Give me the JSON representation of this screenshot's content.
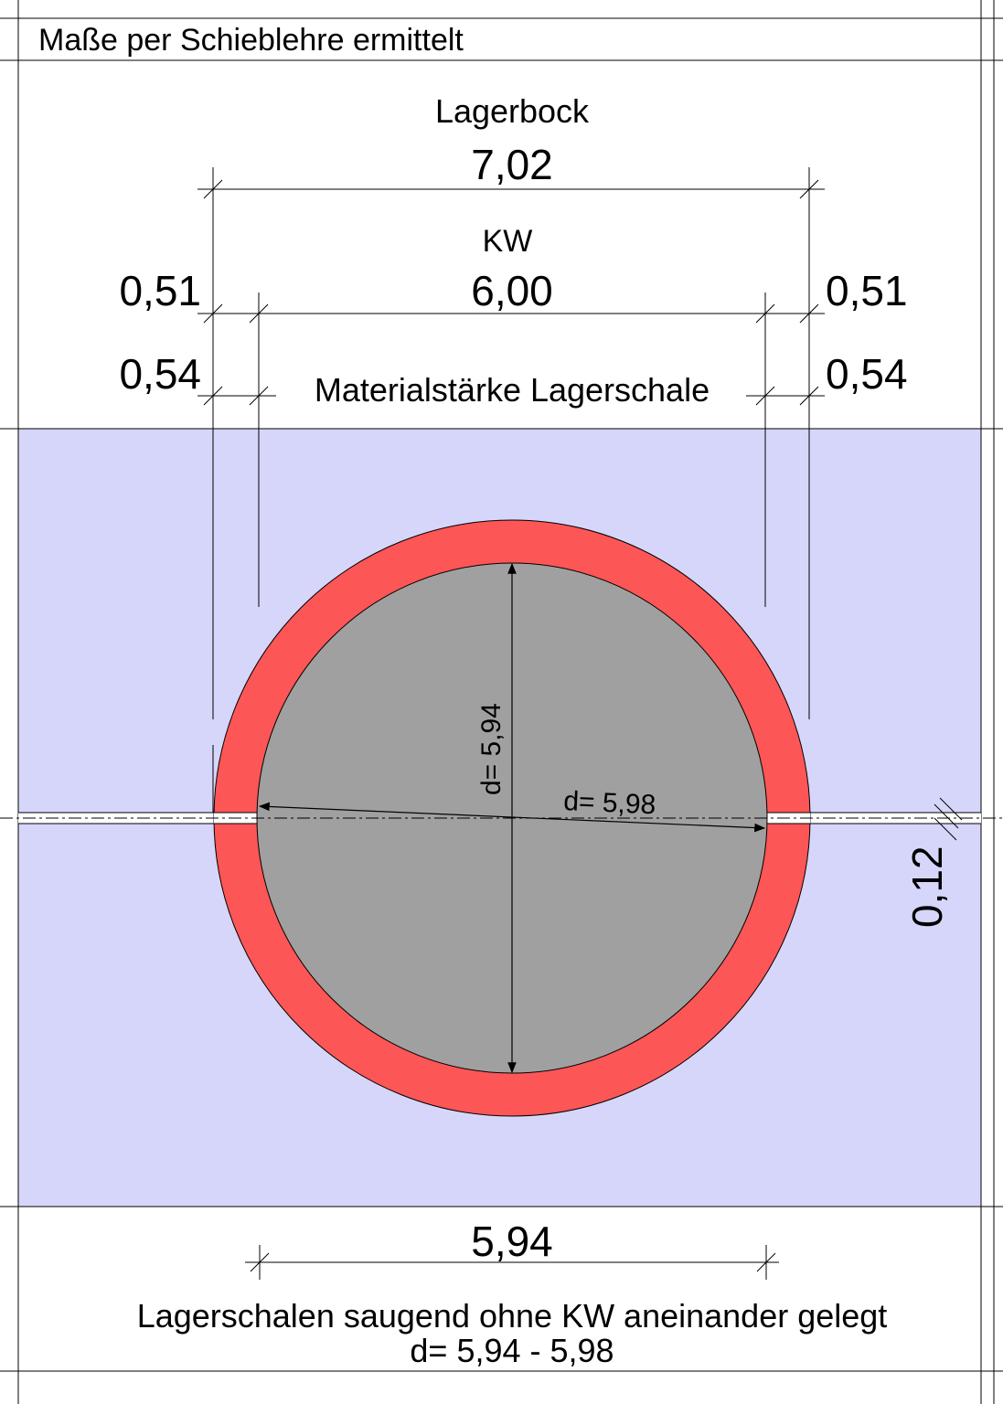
{
  "header": {
    "title": "Maße per Schieblehre ermittelt"
  },
  "dimensions": {
    "lagerbock_label": "Lagerbock",
    "lagerbock_value": "7,02",
    "kw_label": "KW",
    "kw_value": "6,00",
    "left_gap": "0,51",
    "right_gap": "0,51",
    "left_thickness": "0,54",
    "right_thickness": "0,54",
    "thickness_label": "Materialstärke Lagerschale"
  },
  "drawing": {
    "inner_diameter_vertical": "d= 5,94",
    "inner_diameter_horizontal": "d= 5,98",
    "split_gap": "0,12",
    "colors": {
      "background": "#d6d6fb",
      "shell": "#fd5656",
      "shaft": "#a0a0a0"
    }
  },
  "footer": {
    "bottom_width": "5,94",
    "note_line1": "Lagerschalen saugend ohne KW aneinander gelegt",
    "note_line2": "d= 5,94 - 5,98"
  }
}
